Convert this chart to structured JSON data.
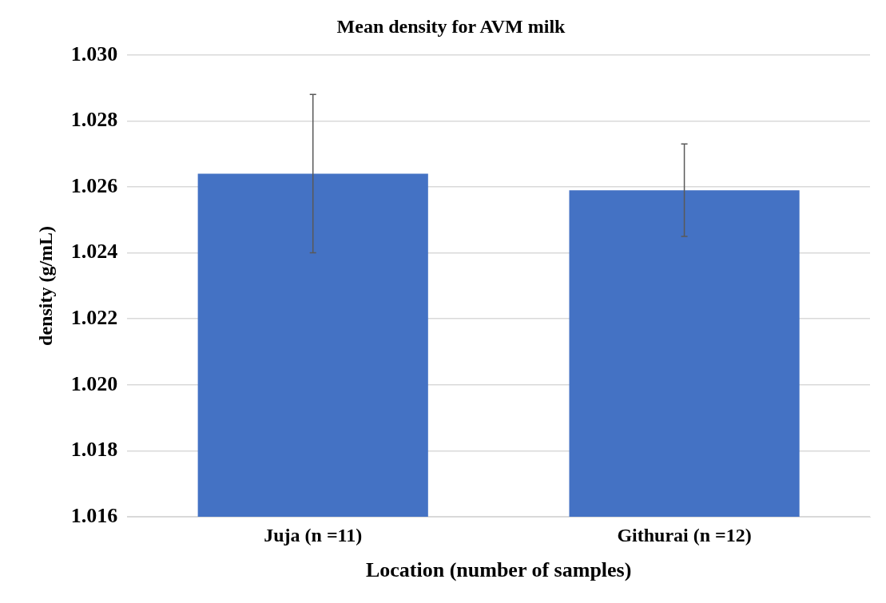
{
  "chart_data": {
    "type": "bar",
    "title": "Mean density for AVM milk",
    "xlabel": "Location (number of samples)",
    "ylabel": "density (g/mL)",
    "categories": [
      "Juja (n =11)",
      "Githurai (n =12)"
    ],
    "values": [
      1.0264,
      1.0259
    ],
    "errors": [
      [
        1.024,
        1.0288
      ],
      [
        1.0245,
        1.0273
      ]
    ],
    "color": "#4472c4",
    "ylim": [
      1.016,
      1.03
    ],
    "yticks": [
      {
        "value": 1.016,
        "label": "1.016"
      },
      {
        "value": 1.018,
        "label": "1.018"
      },
      {
        "value": 1.02,
        "label": "1.020"
      },
      {
        "value": 1.022,
        "label": "1.022"
      },
      {
        "value": 1.024,
        "label": "1.024"
      },
      {
        "value": 1.026,
        "label": "1.026"
      },
      {
        "value": 1.028,
        "label": "1.028"
      },
      {
        "value": 1.03,
        "label": "1.030"
      }
    ],
    "grid": "y",
    "legend": false
  }
}
